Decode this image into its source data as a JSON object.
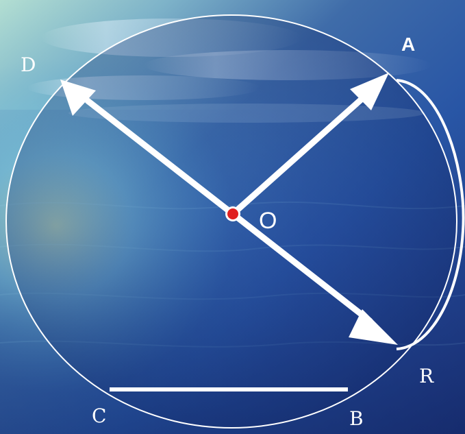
{
  "labels": {
    "a": "A",
    "b": "B",
    "c": "C",
    "d": "D",
    "o": "O",
    "r": "R"
  },
  "colors": {
    "background_light": "#89bfd6",
    "background_dark": "#17378f",
    "water_dark": "#1c2f75",
    "line": "#ffffff",
    "center_point": "#e02020"
  }
}
